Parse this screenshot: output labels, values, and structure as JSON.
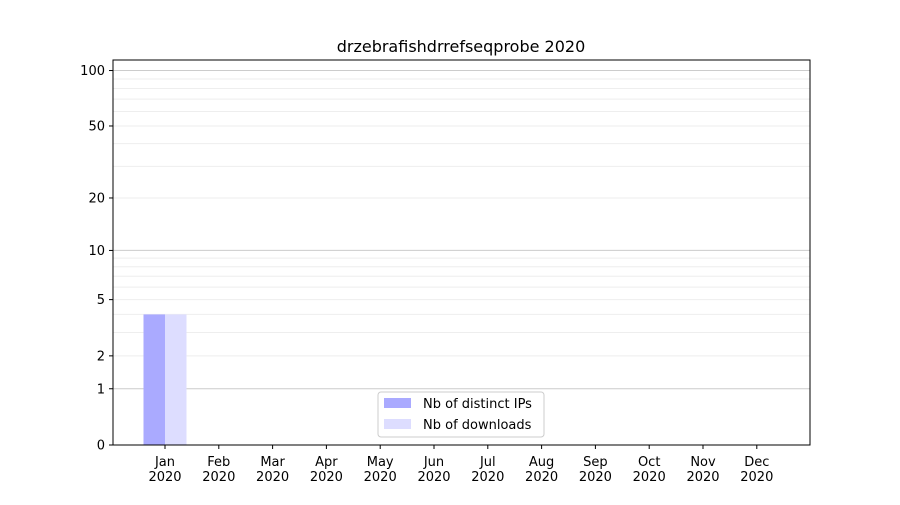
{
  "chart_data": {
    "type": "bar",
    "title": "drzebrafishdrrefseqprobe 2020",
    "xlabel": "",
    "ylabel": "",
    "categories": [
      "Jan\n2020",
      "Feb\n2020",
      "Mar\n2020",
      "Apr\n2020",
      "May\n2020",
      "Jun\n2020",
      "Jul\n2020",
      "Aug\n2020",
      "Sep\n2020",
      "Oct\n2020",
      "Nov\n2020",
      "Dec\n2020"
    ],
    "y_scale": "log(1+y)",
    "y_ticks": [
      0,
      1,
      2,
      5,
      10,
      20,
      50,
      100
    ],
    "ylim": [
      0,
      114
    ],
    "grid": true,
    "legend": "bottom-center",
    "series": [
      {
        "name": "Nb of distinct IPs",
        "color": "#aaaaff",
        "values": [
          4,
          0,
          0,
          0,
          0,
          0,
          0,
          0,
          0,
          0,
          0,
          0
        ]
      },
      {
        "name": "Nb of downloads",
        "color": "#ddddff",
        "values": [
          4,
          0,
          0,
          0,
          0,
          0,
          0,
          0,
          0,
          0,
          0,
          0
        ]
      }
    ]
  }
}
